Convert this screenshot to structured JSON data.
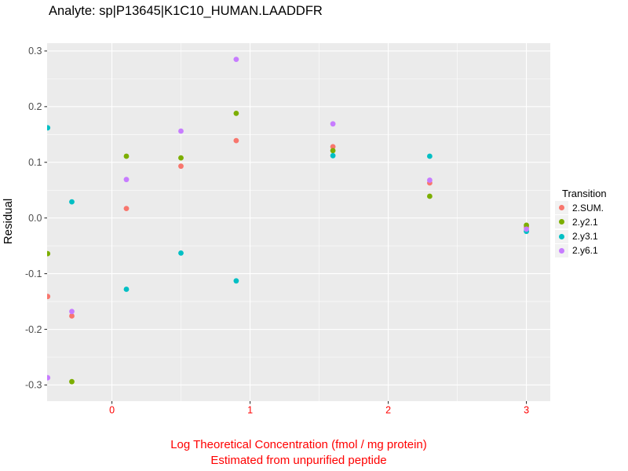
{
  "chart_data": {
    "type": "scatter",
    "title": "Analyte: sp|P13645|K1C10_HUMAN.LAADDFR",
    "xlabel": "Log Theoretical Concentration (fmol / mg protein)",
    "xlabel_line2": "Estimated from unpurified peptide",
    "ylabel": "Residual",
    "legend_title": "Transition",
    "legend_position": "right",
    "grid": true,
    "panel_background": "#EBEBEB",
    "grid_color": "#FFFFFF",
    "legend_key_background": "#F2F2F2",
    "x_axis_color": "#FF0000",
    "y_tick_text_color": "#4D4D4D",
    "tick_mark_color": "#333333",
    "xlim": [
      -0.469,
      3.173
    ],
    "ylim": [
      -0.329,
      0.314
    ],
    "x_ticks": [
      0,
      1,
      2,
      3
    ],
    "x_tick_labels": [
      "0",
      "1",
      "2",
      "3"
    ],
    "x_minor_ticks": [
      0.5,
      1.5,
      2.5
    ],
    "y_ticks": [
      0.3,
      0.2,
      0.1,
      0.0,
      -0.1,
      -0.2,
      -0.3
    ],
    "y_tick_labels": [
      "0.3",
      "0.2",
      "0.1",
      "0.0",
      "-0.1",
      "-0.2",
      "-0.3"
    ],
    "y_minor_ticks": [
      0.25,
      0.15,
      0.05,
      -0.05,
      -0.15,
      -0.25
    ],
    "point_radius": 3.4,
    "series": [
      {
        "name": "2.SUM.",
        "color": "#F8766D",
        "points": [
          [
            -0.465,
            -0.141
          ],
          [
            -0.29,
            -0.176
          ],
          [
            0.105,
            0.017
          ],
          [
            0.5,
            0.093
          ],
          [
            0.9,
            0.139
          ],
          [
            1.6,
            0.128
          ],
          [
            2.3,
            0.063
          ],
          [
            3.0,
            -0.016
          ]
        ]
      },
      {
        "name": "2.y2.1",
        "color": "#7CAE00",
        "points": [
          [
            -0.465,
            -0.064
          ],
          [
            -0.29,
            -0.294
          ],
          [
            0.105,
            0.111
          ],
          [
            0.5,
            0.108
          ],
          [
            0.9,
            0.188
          ],
          [
            1.6,
            0.121
          ],
          [
            2.3,
            0.039
          ],
          [
            3.0,
            -0.013
          ]
        ]
      },
      {
        "name": "2.y3.1",
        "color": "#00BFC4",
        "points": [
          [
            -0.465,
            0.162
          ],
          [
            -0.29,
            0.029
          ],
          [
            0.105,
            -0.128
          ],
          [
            0.5,
            -0.063
          ],
          [
            0.9,
            -0.113
          ],
          [
            1.6,
            0.112
          ],
          [
            2.3,
            0.111
          ],
          [
            3.0,
            -0.024
          ]
        ]
      },
      {
        "name": "2.y6.1",
        "color": "#C77CFF",
        "points": [
          [
            -0.465,
            -0.287
          ],
          [
            -0.29,
            -0.168
          ],
          [
            0.105,
            0.069
          ],
          [
            0.5,
            0.156
          ],
          [
            0.9,
            0.285
          ],
          [
            1.6,
            0.169
          ],
          [
            2.3,
            0.068
          ],
          [
            3.0,
            -0.02
          ]
        ]
      }
    ]
  }
}
